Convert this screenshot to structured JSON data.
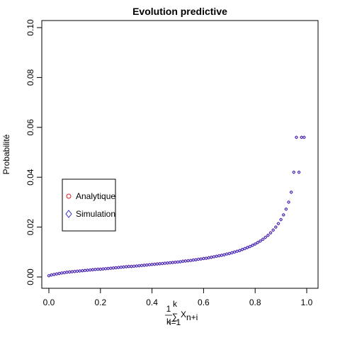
{
  "chart_data": {
    "type": "scatter",
    "title": "Evolution predictive",
    "ylabel": "Probabilité",
    "xlabel_parts": {
      "numerator": "1",
      "denominator": "k",
      "sum_upper": "k",
      "sum_lower": "i=1",
      "variable": "X",
      "variable_subscript": "n+i"
    },
    "xlim": [
      0,
      1
    ],
    "ylim": [
      0,
      0.1
    ],
    "xticks": [
      0.0,
      0.2,
      0.4,
      0.6,
      0.8,
      1.0
    ],
    "xtick_labels": [
      "0.0",
      "0.2",
      "0.4",
      "0.6",
      "0.8",
      "1.0"
    ],
    "yticks": [
      0.0,
      0.02,
      0.04,
      0.06,
      0.08,
      0.1
    ],
    "ytick_labels": [
      "0.00",
      "0.02",
      "0.04",
      "0.06",
      "0.08",
      "0.10"
    ],
    "legend_position": "center-left",
    "series": [
      {
        "name": "Analytique",
        "color": "#e41a1c",
        "marker": "circle",
        "x": [
          0.0,
          0.01,
          0.02,
          0.03,
          0.04,
          0.05,
          0.06,
          0.07,
          0.08,
          0.09,
          0.1,
          0.11,
          0.12,
          0.13,
          0.14,
          0.15,
          0.16,
          0.17,
          0.18,
          0.19,
          0.2,
          0.21,
          0.22,
          0.23,
          0.24,
          0.25,
          0.26,
          0.27,
          0.28,
          0.29,
          0.3,
          0.31,
          0.32,
          0.33,
          0.34,
          0.35,
          0.36,
          0.37,
          0.38,
          0.39,
          0.4,
          0.41,
          0.42,
          0.43,
          0.44,
          0.45,
          0.46,
          0.47,
          0.48,
          0.49,
          0.5,
          0.51,
          0.52,
          0.53,
          0.54,
          0.55,
          0.56,
          0.57,
          0.58,
          0.59,
          0.6,
          0.61,
          0.62,
          0.63,
          0.64,
          0.65,
          0.66,
          0.67,
          0.68,
          0.69,
          0.7,
          0.71,
          0.72,
          0.73,
          0.74,
          0.75,
          0.76,
          0.77,
          0.78,
          0.79,
          0.8,
          0.81,
          0.82,
          0.83,
          0.84,
          0.85,
          0.86,
          0.87,
          0.88,
          0.89,
          0.9,
          0.91,
          0.92,
          0.93,
          0.94,
          0.95,
          0.96,
          0.97,
          0.98,
          0.99
        ],
        "y": [
          0.0005,
          0.0008,
          0.001,
          0.0012,
          0.0014,
          0.0016,
          0.0017,
          0.0019,
          0.002,
          0.0021,
          0.0022,
          0.0023,
          0.0024,
          0.0025,
          0.0026,
          0.0027,
          0.0028,
          0.0029,
          0.003,
          0.0031,
          0.0031,
          0.0032,
          0.0033,
          0.0034,
          0.0035,
          0.0036,
          0.0037,
          0.0038,
          0.0039,
          0.004,
          0.0041,
          0.0042,
          0.0042,
          0.0043,
          0.0044,
          0.0045,
          0.0046,
          0.0047,
          0.0048,
          0.0049,
          0.005,
          0.0051,
          0.0052,
          0.0053,
          0.0054,
          0.0055,
          0.0056,
          0.0057,
          0.0058,
          0.0059,
          0.006,
          0.0061,
          0.0063,
          0.0064,
          0.0065,
          0.0066,
          0.0068,
          0.0069,
          0.0071,
          0.0072,
          0.0074,
          0.0075,
          0.0077,
          0.0079,
          0.0081,
          0.0083,
          0.0085,
          0.0087,
          0.0089,
          0.0092,
          0.0094,
          0.0097,
          0.01,
          0.0103,
          0.0106,
          0.011,
          0.0114,
          0.0118,
          0.0122,
          0.0127,
          0.0132,
          0.0138,
          0.0144,
          0.0151,
          0.0159,
          0.0167,
          0.0177,
          0.0188,
          0.02,
          0.0214,
          0.023,
          0.0249,
          0.0272,
          0.03,
          0.034,
          0.042,
          0.056,
          0.042,
          0.056,
          0.056
        ],
        "y_note": ""
      },
      {
        "name": "Simulation",
        "color": "#2b2bd8",
        "marker": "diamond",
        "x": [
          0.0,
          0.01,
          0.02,
          0.03,
          0.04,
          0.05,
          0.06,
          0.07,
          0.08,
          0.09,
          0.1,
          0.11,
          0.12,
          0.13,
          0.14,
          0.15,
          0.16,
          0.17,
          0.18,
          0.19,
          0.2,
          0.21,
          0.22,
          0.23,
          0.24,
          0.25,
          0.26,
          0.27,
          0.28,
          0.29,
          0.3,
          0.31,
          0.32,
          0.33,
          0.34,
          0.35,
          0.36,
          0.37,
          0.38,
          0.39,
          0.4,
          0.41,
          0.42,
          0.43,
          0.44,
          0.45,
          0.46,
          0.47,
          0.48,
          0.49,
          0.5,
          0.51,
          0.52,
          0.53,
          0.54,
          0.55,
          0.56,
          0.57,
          0.58,
          0.59,
          0.6,
          0.61,
          0.62,
          0.63,
          0.64,
          0.65,
          0.66,
          0.67,
          0.68,
          0.69,
          0.7,
          0.71,
          0.72,
          0.73,
          0.74,
          0.75,
          0.76,
          0.77,
          0.78,
          0.79,
          0.8,
          0.81,
          0.82,
          0.83,
          0.84,
          0.85,
          0.86,
          0.87,
          0.88,
          0.89,
          0.9,
          0.91,
          0.92,
          0.93,
          0.94,
          0.95,
          0.96,
          0.97,
          0.98,
          0.99
        ],
        "y": [
          0.0005,
          0.0008,
          0.001,
          0.0012,
          0.0014,
          0.0016,
          0.0017,
          0.0019,
          0.002,
          0.0021,
          0.0022,
          0.0023,
          0.0024,
          0.0025,
          0.0026,
          0.0027,
          0.0028,
          0.0029,
          0.003,
          0.0031,
          0.0031,
          0.0032,
          0.0033,
          0.0034,
          0.0035,
          0.0036,
          0.0037,
          0.0038,
          0.0039,
          0.004,
          0.0041,
          0.0042,
          0.0042,
          0.0043,
          0.0044,
          0.0045,
          0.0046,
          0.0047,
          0.0048,
          0.0049,
          0.005,
          0.0051,
          0.0052,
          0.0053,
          0.0054,
          0.0055,
          0.0056,
          0.0057,
          0.0058,
          0.0059,
          0.006,
          0.0061,
          0.0063,
          0.0064,
          0.0065,
          0.0066,
          0.0068,
          0.0069,
          0.0071,
          0.0072,
          0.0074,
          0.0075,
          0.0077,
          0.0079,
          0.0081,
          0.0083,
          0.0085,
          0.0087,
          0.0089,
          0.0092,
          0.0094,
          0.0097,
          0.01,
          0.0103,
          0.0106,
          0.011,
          0.0114,
          0.0118,
          0.0122,
          0.0127,
          0.0132,
          0.0138,
          0.0144,
          0.0151,
          0.0159,
          0.0167,
          0.0177,
          0.0188,
          0.02,
          0.0214,
          0.023,
          0.0249,
          0.0272,
          0.03,
          0.034,
          0.042,
          0.056,
          0.042,
          0.056,
          0.056
        ]
      }
    ]
  }
}
